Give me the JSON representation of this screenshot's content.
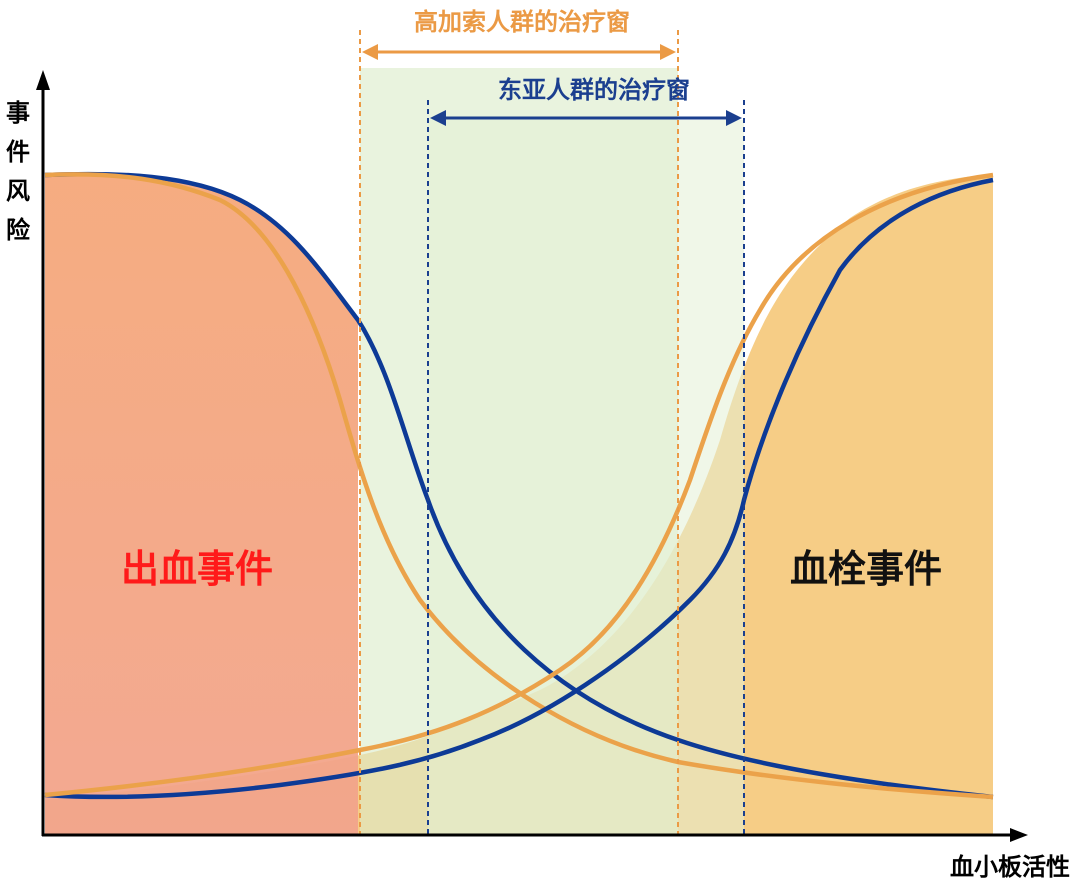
{
  "axes": {
    "y_label_chars": [
      "事",
      "件",
      "风",
      "险"
    ],
    "x_label": "血小板活性"
  },
  "windows": {
    "caucasian": {
      "label": "高加索人群的治疗窗",
      "color": "#EB9A45"
    },
    "east_asian": {
      "label": "东亚人群的治疗窗",
      "color": "#1B3F8F"
    }
  },
  "regions": {
    "bleeding": {
      "label": "出血事件",
      "color": "#FF1A1A"
    },
    "thrombotic": {
      "label": "血栓事件",
      "color": "#111111"
    }
  },
  "colors": {
    "blue_curve": "#0D3A96",
    "orange_curve": "#EBA24A",
    "bleeding_fill": "#F0A07A",
    "thrombotic_fill": "#F5C97C",
    "window_fill": "#DCEBC9",
    "axis": "#000000"
  }
}
